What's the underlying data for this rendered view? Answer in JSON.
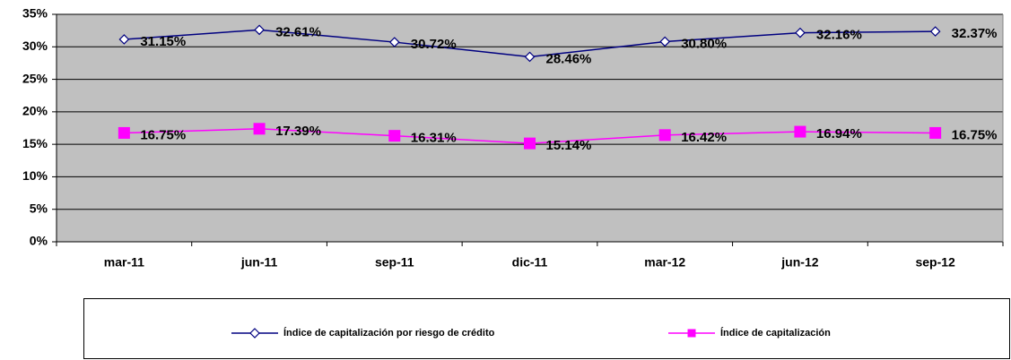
{
  "chart_data": {
    "type": "line",
    "categories": [
      "mar-11",
      "jun-11",
      "sep-11",
      "dic-11",
      "mar-12",
      "jun-12",
      "sep-12"
    ],
    "series": [
      {
        "name": "Índice de capitalización por riesgo de crédito",
        "color": "#000080",
        "marker": "diamond",
        "values": [
          31.15,
          32.61,
          30.72,
          28.46,
          30.8,
          32.16,
          32.37
        ],
        "value_labels": [
          "31.15%",
          "32.61%",
          "30.72%",
          "28.46%",
          "30.80%",
          "32.16%",
          "32.37%"
        ]
      },
      {
        "name": "Índice de capitalización",
        "color": "#ff00ff",
        "marker": "square",
        "values": [
          16.75,
          17.39,
          16.31,
          15.14,
          16.42,
          16.94,
          16.75
        ],
        "value_labels": [
          "16.75%",
          "17.39%",
          "16.31%",
          "15.14%",
          "16.42%",
          "16.94%",
          "16.75%"
        ]
      }
    ],
    "ylim": [
      0,
      35
    ],
    "yticks": [
      {
        "value": 0,
        "label": "0%"
      },
      {
        "value": 5,
        "label": "5%"
      },
      {
        "value": 10,
        "label": "10%"
      },
      {
        "value": 15,
        "label": "15%"
      },
      {
        "value": 20,
        "label": "20%"
      },
      {
        "value": 25,
        "label": "25%"
      },
      {
        "value": 30,
        "label": "30%"
      },
      {
        "value": 35,
        "label": "35%"
      }
    ],
    "grid": true,
    "plot_background": "#c0c0c0",
    "legend": "bottom"
  }
}
